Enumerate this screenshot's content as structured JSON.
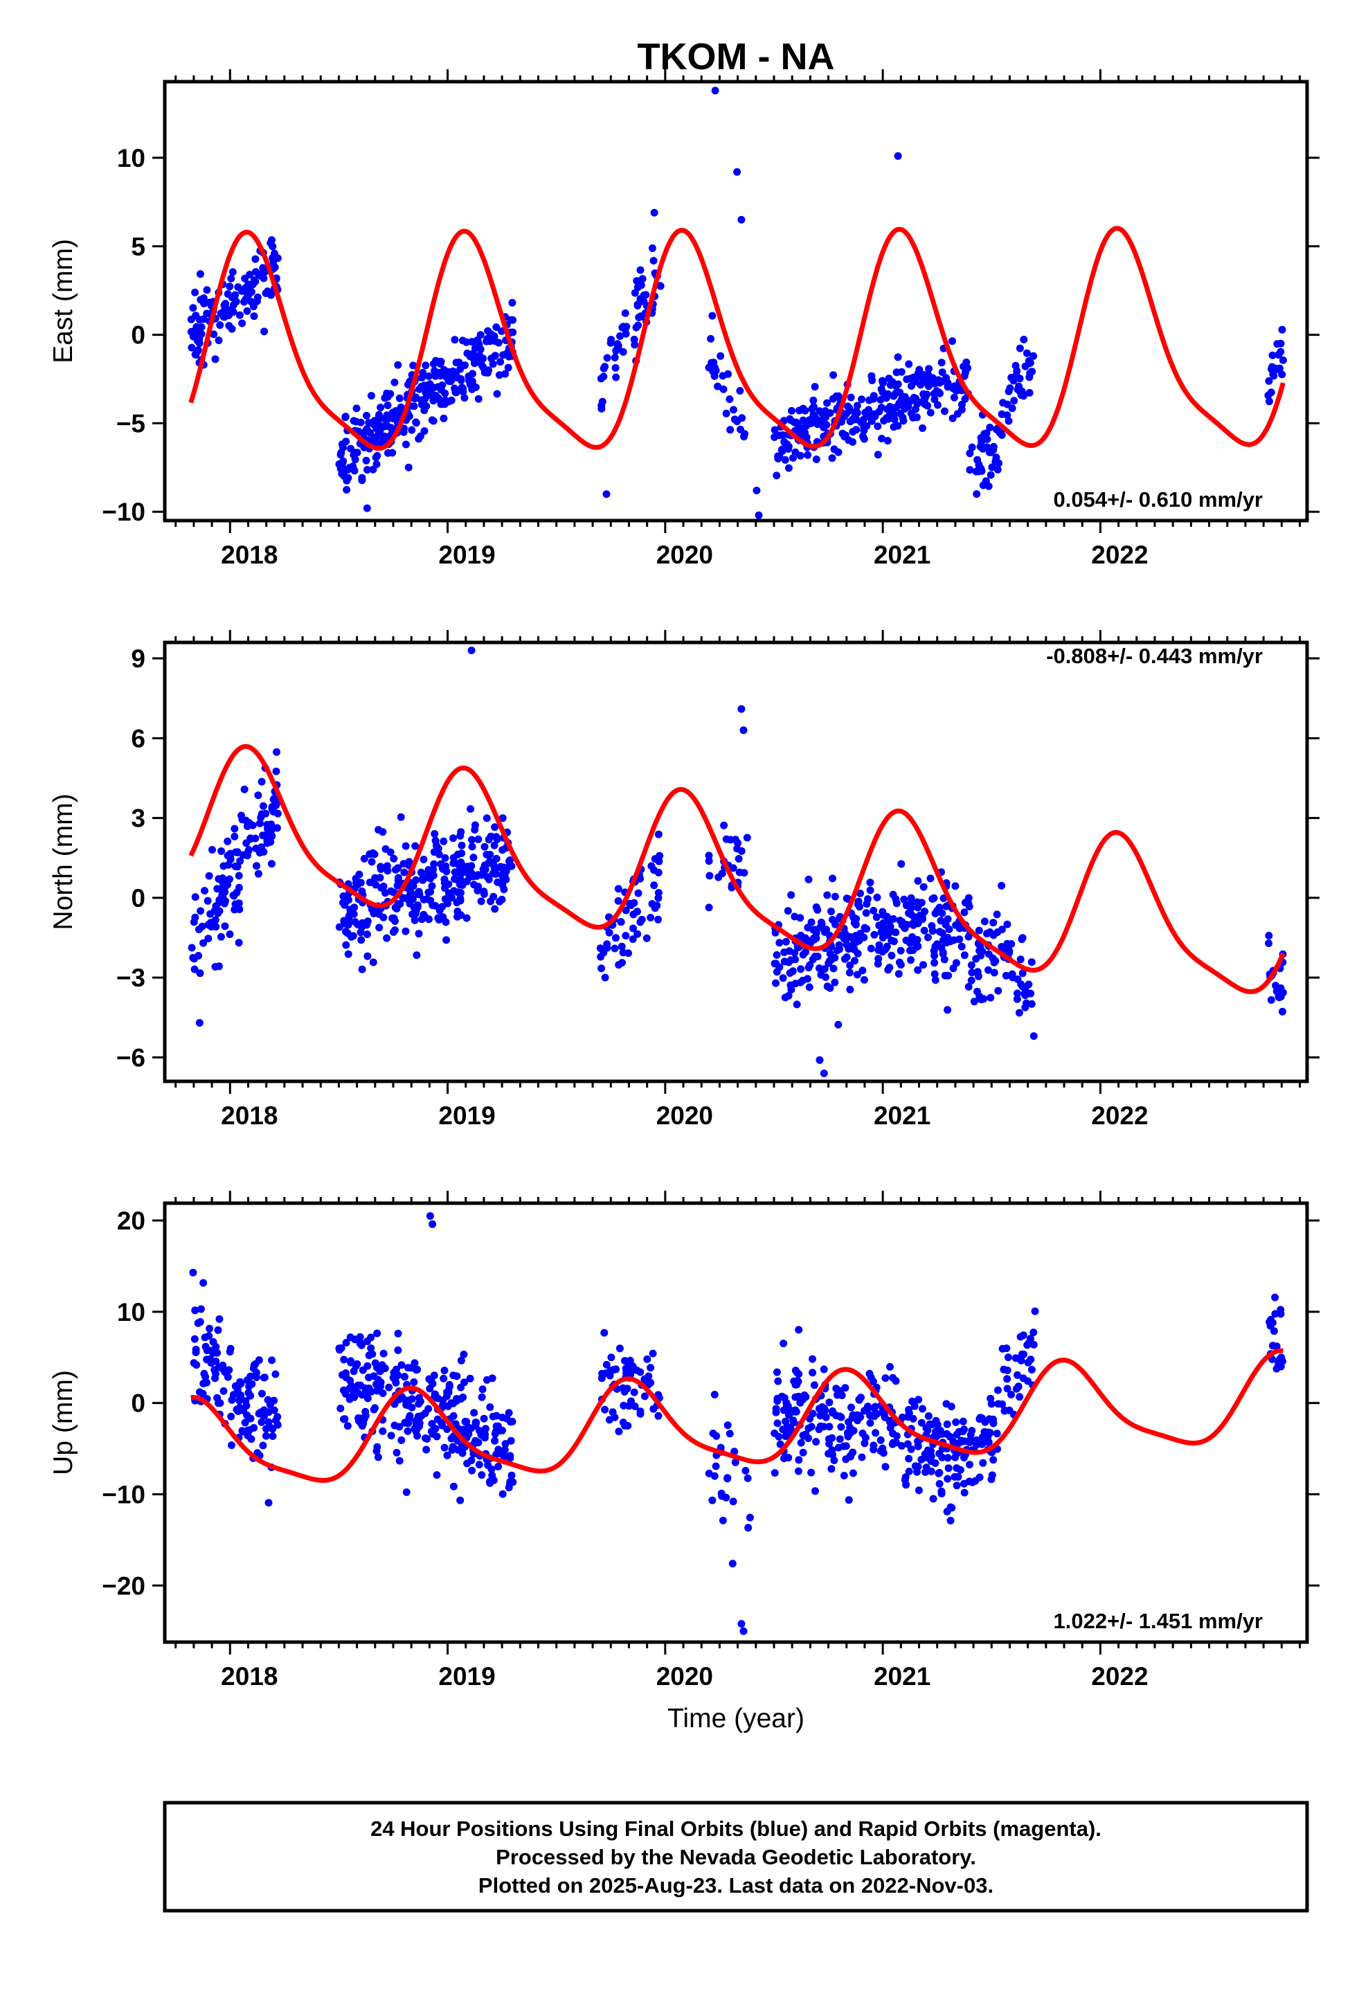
{
  "title": "TKOM - NA",
  "xlabel": "Time (year)",
  "caption": [
    "24 Hour Positions Using Final Orbits (blue) and Rapid Orbits (magenta).",
    "Processed by the Nevada Geodetic Laboratory.",
    "Plotted on 2025-Aug-23. Last data on 2022-Nov-03."
  ],
  "colors": {
    "observations": "#0000ff",
    "model": "#ff0000",
    "axes": "#000000"
  },
  "chart_data": [
    {
      "type": "scatter",
      "name": "east",
      "ylabel": "East (mm)",
      "rate": "0.054+/- 0.610 mm/yr",
      "xlim": [
        2017.7,
        2022.95
      ],
      "ylim": [
        -10.5,
        14.3
      ],
      "x_ticks": [
        2018,
        2019,
        2020,
        2021,
        2022
      ],
      "y_ticks": [
        -10,
        -5,
        0,
        5,
        10
      ],
      "segments": [
        {
          "start": 2017.82,
          "end": 2018.22,
          "count": 130,
          "y_start": 0.0,
          "y_end": 4.0,
          "noise": 1.3
        },
        {
          "start": 2018.5,
          "end": 2019.3,
          "count": 300,
          "y_start": -7.0,
          "y_end": 0.0,
          "noise": 1.4
        },
        {
          "start": 2019.7,
          "end": 2019.98,
          "count": 60,
          "y_start": -2.5,
          "y_end": 3.5,
          "noise": 1.3
        },
        {
          "start": 2020.2,
          "end": 2020.4,
          "count": 25,
          "y_start": -1.0,
          "y_end": -6.5,
          "noise": 1.5
        },
        {
          "start": 2020.5,
          "end": 2021.4,
          "count": 300,
          "y_start": -6.0,
          "y_end": -2.5,
          "noise": 1.3
        },
        {
          "start": 2021.4,
          "end": 2021.55,
          "count": 40,
          "y_start": -7.5,
          "y_end": -6.5,
          "noise": 1.4
        },
        {
          "start": 2021.55,
          "end": 2021.7,
          "count": 35,
          "y_start": -3.5,
          "y_end": -1.5,
          "noise": 1.2
        },
        {
          "start": 2022.77,
          "end": 2022.84,
          "count": 20,
          "y_start": -3.0,
          "y_end": -0.5,
          "noise": 1.0
        }
      ],
      "outliers": [
        [
          2020.23,
          13.8
        ],
        [
          2020.33,
          9.2
        ],
        [
          2020.35,
          6.5
        ],
        [
          2021.07,
          10.1
        ],
        [
          2019.95,
          6.9
        ],
        [
          2019.73,
          -9.0
        ],
        [
          2018.63,
          -9.8
        ],
        [
          2020.43,
          -10.2
        ],
        [
          2020.42,
          -8.8
        ]
      ],
      "model": {
        "offset": -1.2,
        "trend": 0.054,
        "annual_amp": 5.8,
        "annual_phase": 2018.1
      }
    },
    {
      "type": "scatter",
      "name": "north",
      "ylabel": "North (mm)",
      "rate": "-0.808+/- 0.443 mm/yr",
      "xlim": [
        2017.7,
        2022.95
      ],
      "ylim": [
        -6.9,
        9.6
      ],
      "x_ticks": [
        2018,
        2019,
        2020,
        2021,
        2022
      ],
      "y_ticks": [
        -6,
        -3,
        0,
        3,
        6,
        9
      ],
      "segments": [
        {
          "start": 2017.82,
          "end": 2018.22,
          "count": 130,
          "y_start": -1.5,
          "y_end": 3.5,
          "noise": 1.4
        },
        {
          "start": 2018.5,
          "end": 2019.3,
          "count": 300,
          "y_start": -0.5,
          "y_end": 1.5,
          "noise": 1.5
        },
        {
          "start": 2019.7,
          "end": 2019.98,
          "count": 60,
          "y_start": -2.5,
          "y_end": 1.0,
          "noise": 1.3
        },
        {
          "start": 2020.2,
          "end": 2020.4,
          "count": 25,
          "y_start": 1.5,
          "y_end": 1.0,
          "noise": 1.4
        },
        {
          "start": 2020.5,
          "end": 2021.4,
          "count": 300,
          "y_start": -2.0,
          "y_end": -1.0,
          "noise": 1.4
        },
        {
          "start": 2021.4,
          "end": 2021.55,
          "count": 40,
          "y_start": -2.5,
          "y_end": -2.0,
          "noise": 1.3
        },
        {
          "start": 2021.55,
          "end": 2021.7,
          "count": 35,
          "y_start": -2.0,
          "y_end": -3.5,
          "noise": 1.2
        },
        {
          "start": 2022.77,
          "end": 2022.84,
          "count": 20,
          "y_start": -3.0,
          "y_end": -3.0,
          "noise": 0.9
        }
      ],
      "outliers": [
        [
          2019.11,
          9.3
        ],
        [
          2020.35,
          7.1
        ],
        [
          2020.73,
          -6.6
        ],
        [
          2020.71,
          -6.1
        ],
        [
          2020.36,
          6.3
        ],
        [
          2017.86,
          -4.7
        ]
      ],
      "model": {
        "offset": 0.7,
        "trend": -0.808,
        "annual_amp": 2.6,
        "annual_phase": 2018.1
      }
    },
    {
      "type": "scatter",
      "name": "up",
      "ylabel": "Up (mm)",
      "rate": "1.022+/- 1.451 mm/yr",
      "xlim": [
        2017.7,
        2022.95
      ],
      "ylim": [
        -26.2,
        21.9
      ],
      "x_ticks": [
        2018,
        2019,
        2020,
        2021,
        2022
      ],
      "y_ticks": [
        -20,
        -10,
        0,
        10,
        20
      ],
      "segments": [
        {
          "start": 2017.82,
          "end": 2018.22,
          "count": 130,
          "y_start": 7.0,
          "y_end": -3.0,
          "noise": 4.5
        },
        {
          "start": 2018.5,
          "end": 2019.3,
          "count": 300,
          "y_start": 3.5,
          "y_end": -5.0,
          "noise": 4.3
        },
        {
          "start": 2019.7,
          "end": 2019.98,
          "count": 60,
          "y_start": 1.5,
          "y_end": 1.5,
          "noise": 4.0
        },
        {
          "start": 2020.2,
          "end": 2020.4,
          "count": 25,
          "y_start": -4.0,
          "y_end": -10.0,
          "noise": 4.0
        },
        {
          "start": 2020.5,
          "end": 2021.4,
          "count": 300,
          "y_start": 0.0,
          "y_end": -6.0,
          "noise": 4.2
        },
        {
          "start": 2021.4,
          "end": 2021.55,
          "count": 40,
          "y_start": -5.0,
          "y_end": -3.0,
          "noise": 3.8
        },
        {
          "start": 2021.55,
          "end": 2021.7,
          "count": 35,
          "y_start": 1.0,
          "y_end": 5.0,
          "noise": 3.5
        },
        {
          "start": 2022.77,
          "end": 2022.84,
          "count": 20,
          "y_start": 9.0,
          "y_end": 5.0,
          "noise": 3.5
        }
      ],
      "outliers": [
        [
          2018.92,
          20.5
        ],
        [
          2018.93,
          19.6
        ],
        [
          2020.36,
          -25.0
        ],
        [
          2020.35,
          -24.2
        ],
        [
          2020.31,
          -17.6
        ],
        [
          2017.83,
          14.3
        ]
      ],
      "model": {
        "offset": -2.5,
        "trend": 1.022,
        "annual_amp": 4.6,
        "annual_phase": 2018.85
      }
    }
  ]
}
